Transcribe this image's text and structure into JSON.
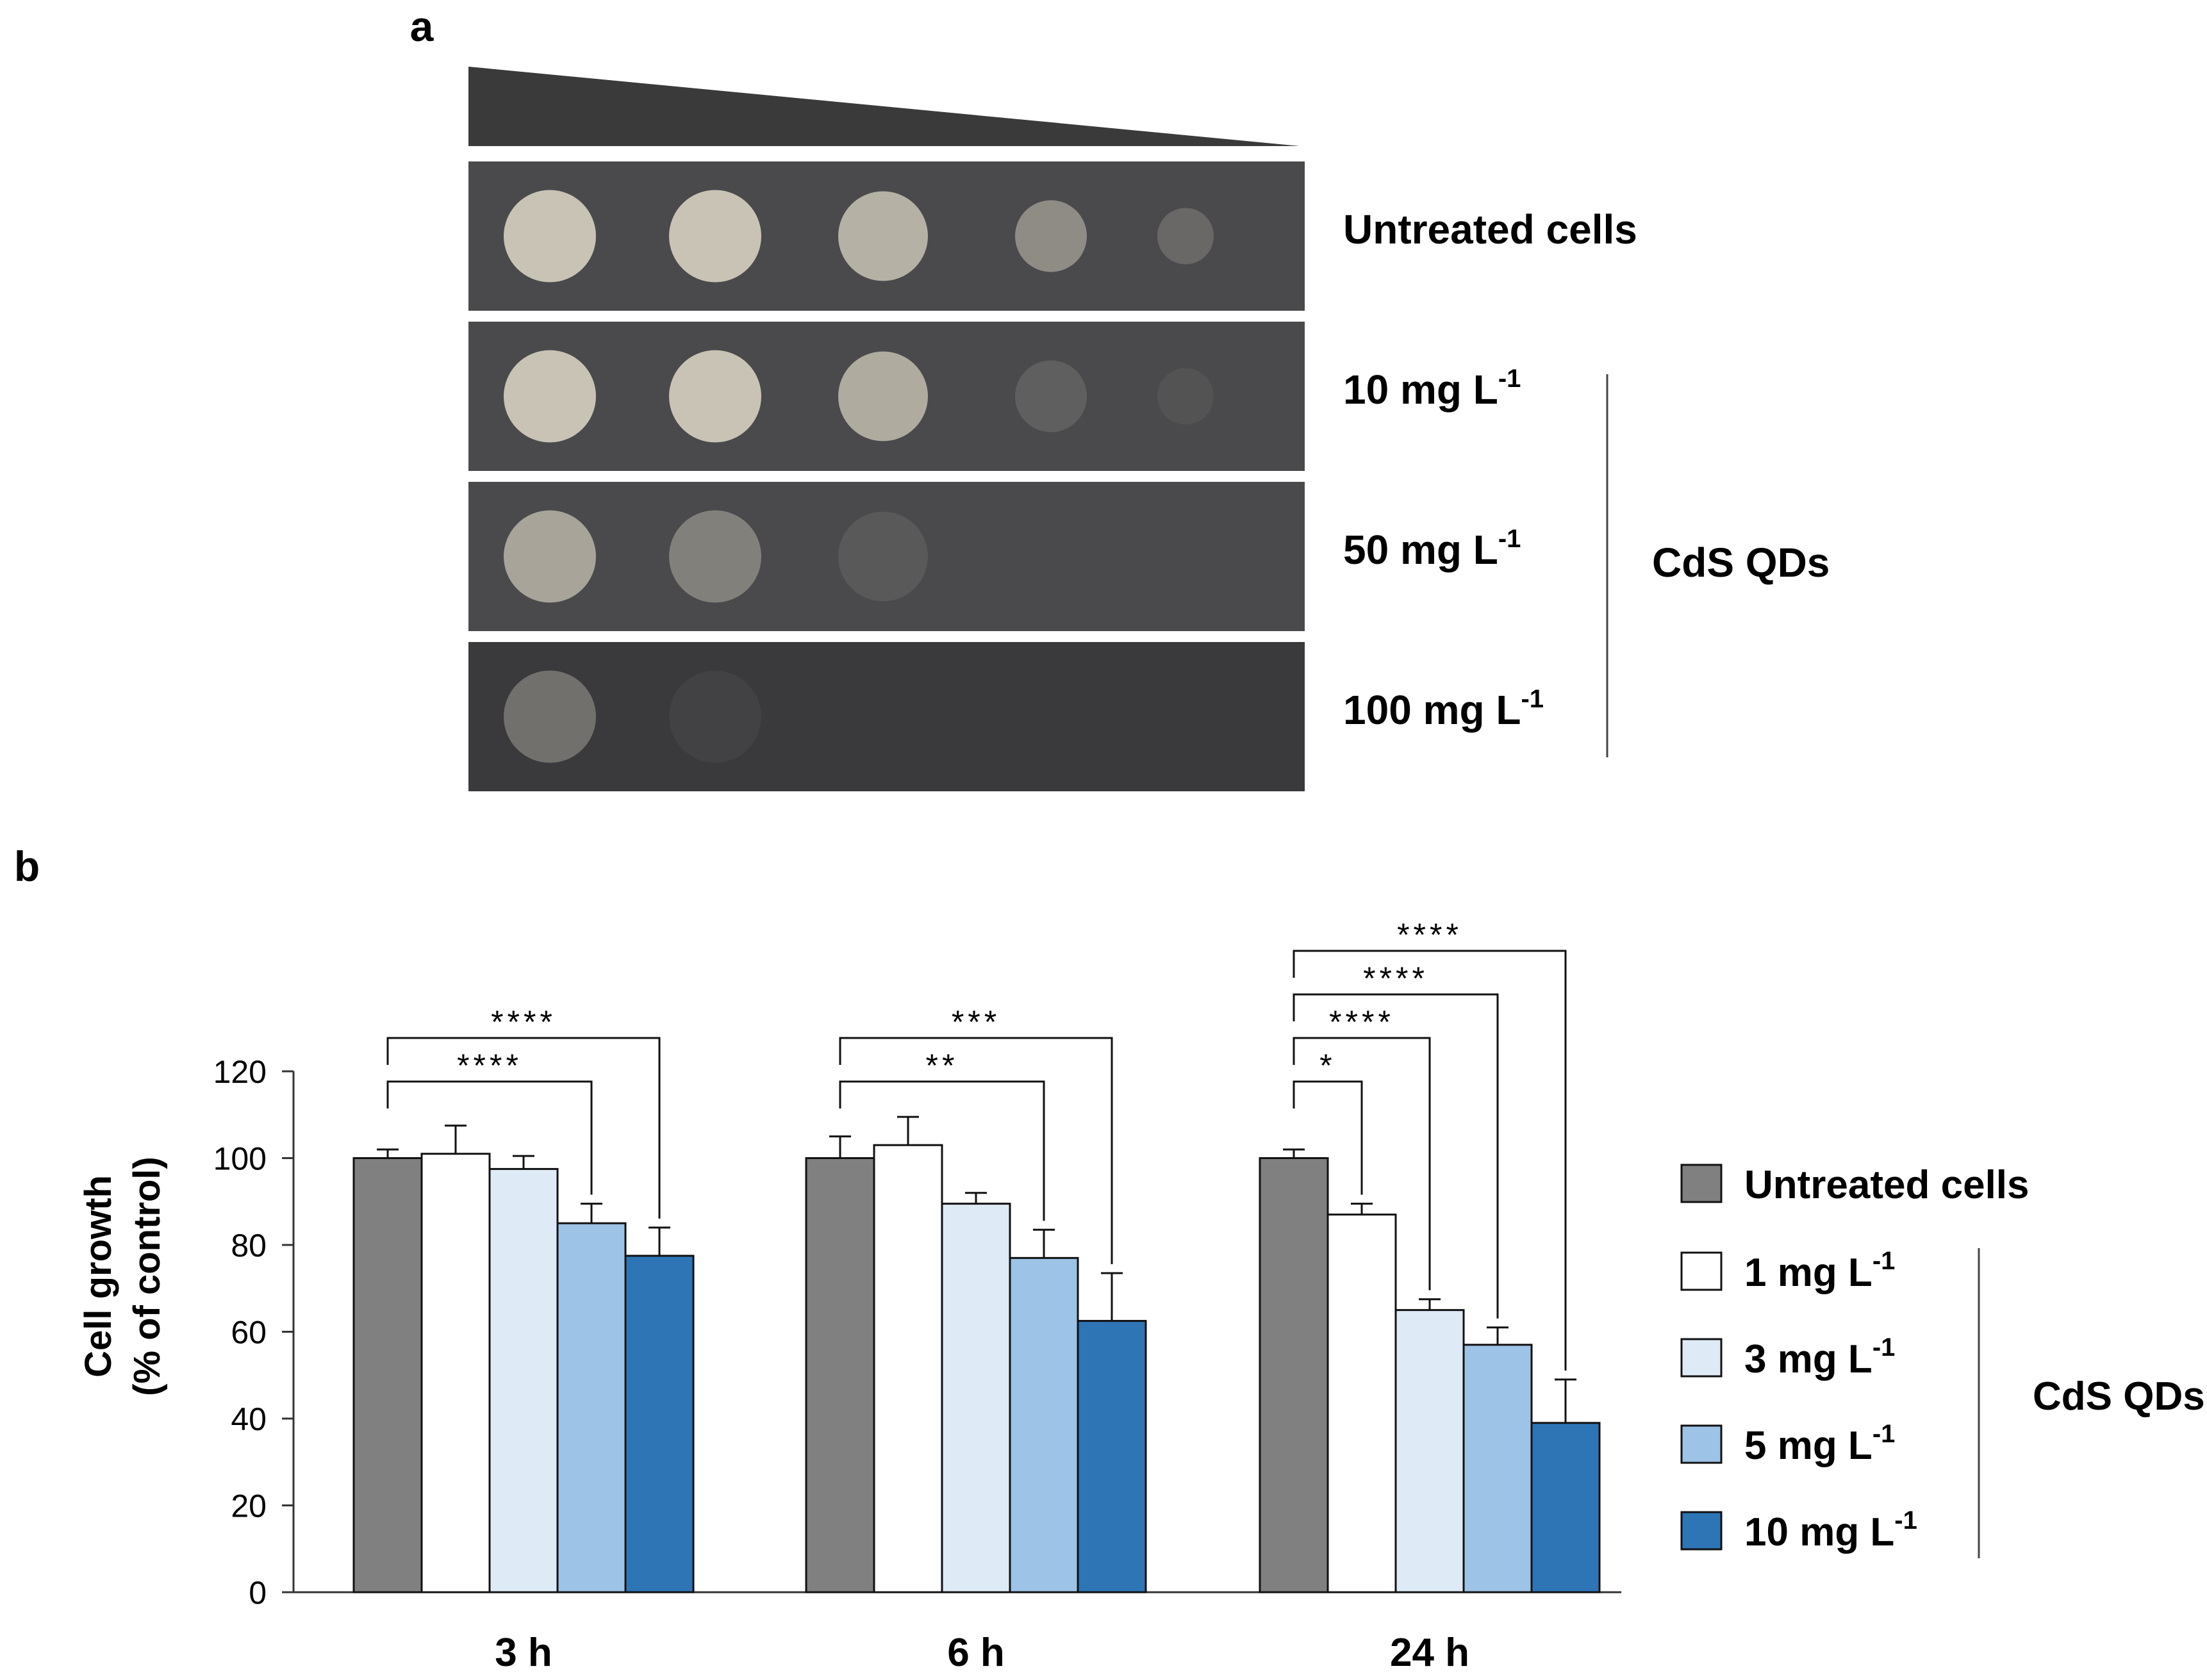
{
  "panel_a": {
    "panel_label": "a",
    "rows": [
      {
        "label": "Untreated cells",
        "unit": "",
        "spot_density": [
          1,
          1,
          0.85,
          0.55,
          0.25
        ]
      },
      {
        "label": "10 mg L",
        "unit": "-1",
        "spot_density": [
          1,
          1,
          0.8,
          0.18,
          0.08
        ]
      },
      {
        "label": "50 mg L",
        "unit": "-1",
        "spot_density": [
          0.75,
          0.45,
          0.12,
          0,
          0
        ]
      },
      {
        "label": "100 mg L",
        "unit": "-1",
        "spot_density": [
          0.4,
          0.06,
          0,
          0,
          0
        ]
      }
    ],
    "group_label": "CdS QDs"
  },
  "panel_b": {
    "panel_label": "b",
    "legend": [
      {
        "label": "Untreated cells",
        "unit": ""
      },
      {
        "label": "1 mg L",
        "unit": "-1"
      },
      {
        "label": "3 mg L",
        "unit": "-1"
      },
      {
        "label": "5 mg L",
        "unit": "-1"
      },
      {
        "label": "10 mg L",
        "unit": "-1"
      }
    ],
    "legend_group_label": "CdS QDs"
  },
  "chart_data": {
    "type": "bar",
    "ylabel_line1": "Cell growth",
    "ylabel_line2": "(% of control)",
    "ylim": [
      0,
      120
    ],
    "yticks": [
      0,
      20,
      40,
      60,
      80,
      100,
      120
    ],
    "categories": [
      "3 h",
      "6 h",
      "24 h"
    ],
    "series": [
      {
        "name": "Untreated cells",
        "color": "#808080",
        "values": [
          100,
          100,
          100
        ],
        "errors": [
          2,
          5,
          2
        ]
      },
      {
        "name": "1 mg L-1",
        "color": "#ffffff",
        "values": [
          101,
          103,
          87
        ],
        "errors": [
          6.5,
          6.5,
          2.5
        ]
      },
      {
        "name": "3 mg L-1",
        "color": "#deebf7",
        "values": [
          97.5,
          89.5,
          65
        ],
        "errors": [
          3,
          2.5,
          2.5
        ]
      },
      {
        "name": "5 mg L-1",
        "color": "#9dc3e6",
        "values": [
          85,
          77,
          57
        ],
        "errors": [
          4.5,
          6.5,
          4
        ]
      },
      {
        "name": "10 mg L-1",
        "color": "#2e75b6",
        "values": [
          77.5,
          62.5,
          39
        ],
        "errors": [
          6.5,
          11,
          10
        ]
      }
    ],
    "significance": [
      {
        "category": 0,
        "from": 0,
        "to": 3,
        "label": "****",
        "level": 0
      },
      {
        "category": 0,
        "from": 0,
        "to": 4,
        "label": "****",
        "level": 1
      },
      {
        "category": 1,
        "from": 0,
        "to": 3,
        "label": "**",
        "level": 0
      },
      {
        "category": 1,
        "from": 0,
        "to": 4,
        "label": "***",
        "level": 1
      },
      {
        "category": 2,
        "from": 0,
        "to": 1,
        "label": "*",
        "level": 0
      },
      {
        "category": 2,
        "from": 0,
        "to": 2,
        "label": "****",
        "level": 1
      },
      {
        "category": 2,
        "from": 0,
        "to": 3,
        "label": "****",
        "level": 2
      },
      {
        "category": 2,
        "from": 0,
        "to": 4,
        "label": "****",
        "level": 3
      }
    ]
  }
}
